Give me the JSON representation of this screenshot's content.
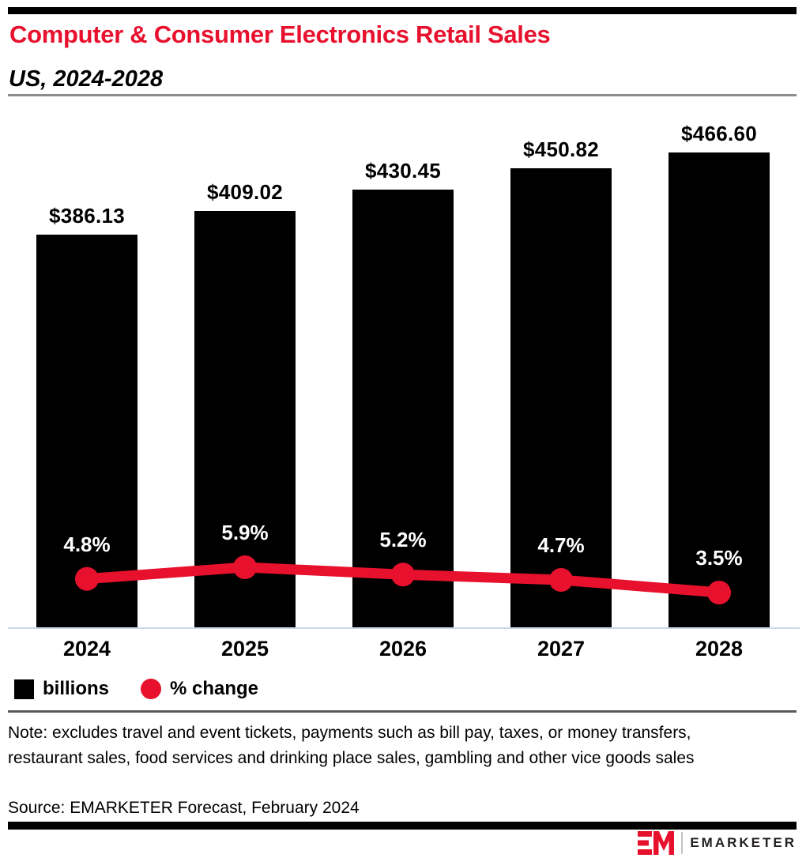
{
  "header": {
    "title": "Computer & Consumer Electronics Retail Sales",
    "subtitle": "US, 2024-2028"
  },
  "chart_data": {
    "type": "bar",
    "title": "Computer & Consumer Electronics Retail Sales",
    "subtitle": "US, 2024-2028",
    "categories": [
      "2024",
      "2025",
      "2026",
      "2027",
      "2028"
    ],
    "series": [
      {
        "name": "billions",
        "type": "bar",
        "color": "#000000",
        "values": [
          386.13,
          409.02,
          430.45,
          450.82,
          466.6
        ],
        "labels": [
          "$386.13",
          "$409.02",
          "$430.45",
          "$450.82",
          "$466.60"
        ]
      },
      {
        "name": "% change",
        "type": "line",
        "color": "#e8112d",
        "values": [
          4.8,
          5.9,
          5.2,
          4.7,
          3.5
        ],
        "labels": [
          "4.8%",
          "5.9%",
          "5.2%",
          "4.7%",
          "3.5%"
        ]
      }
    ],
    "xlabel": "",
    "ylabel": "",
    "grid": false,
    "legend_position": "bottom-left"
  },
  "legend": {
    "bars_label": "billions",
    "line_label": "% change"
  },
  "footnotes": {
    "note": "Note: excludes travel and event tickets, payments such as bill pay, taxes, or money transfers, restaurant sales, food services and drinking place sales, gambling and other vice goods sales",
    "source": "Source: EMARKETER Forecast, February 2024"
  },
  "footer": {
    "brand": "EMARKETER"
  },
  "colors": {
    "accent_red": "#e8112d",
    "bar_black": "#000000",
    "baseline_line": "#ccd6ea",
    "divider_gray": "#8c8c8c"
  }
}
